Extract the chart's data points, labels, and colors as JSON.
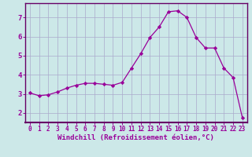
{
  "x": [
    0,
    1,
    2,
    3,
    4,
    5,
    6,
    7,
    8,
    9,
    10,
    11,
    12,
    13,
    14,
    15,
    16,
    17,
    18,
    19,
    20,
    21,
    22,
    23
  ],
  "y": [
    3.05,
    2.9,
    2.95,
    3.1,
    3.3,
    3.45,
    3.55,
    3.55,
    3.5,
    3.45,
    3.6,
    4.35,
    5.1,
    5.95,
    6.5,
    7.3,
    7.35,
    7.0,
    5.95,
    5.4,
    5.4,
    4.35,
    3.85,
    1.75
  ],
  "line_color": "#990099",
  "marker": "D",
  "marker_size": 2.2,
  "bg_color": "#cce8e8",
  "grid_color": "#aaaacc",
  "xlabel": "Windchill (Refroidissement éolien,°C)",
  "xlabel_color": "#990099",
  "tick_color": "#990099",
  "axis_color": "#660066",
  "ylim": [
    1.5,
    7.75
  ],
  "xlim": [
    -0.5,
    23.5
  ],
  "yticks": [
    2,
    3,
    4,
    5,
    6,
    7
  ],
  "xticks": [
    0,
    1,
    2,
    3,
    4,
    5,
    6,
    7,
    8,
    9,
    10,
    11,
    12,
    13,
    14,
    15,
    16,
    17,
    18,
    19,
    20,
    21,
    22,
    23
  ]
}
